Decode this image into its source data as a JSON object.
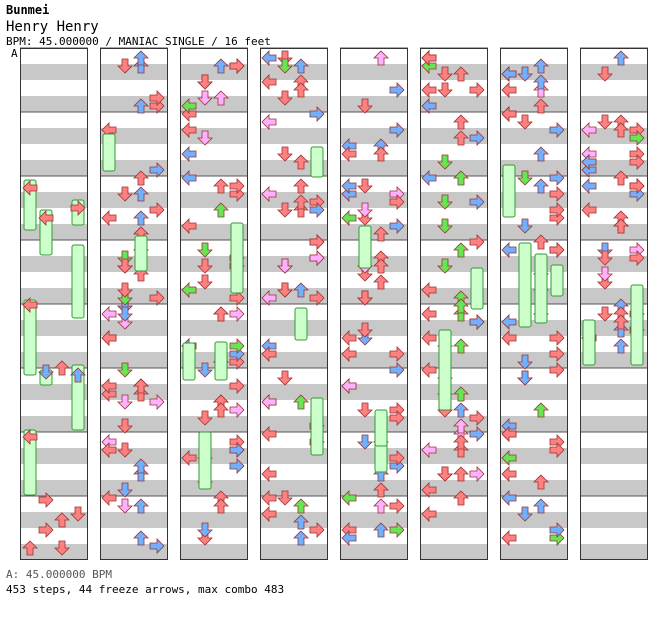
{
  "header": {
    "artist": "Bunmei",
    "title": "Henry Henry",
    "info": "BPM: 45.000000 / MANIAC SINGLE / 16 feet",
    "marker": "A"
  },
  "footer": {
    "bpm_line": "A: 45.000000 BPM",
    "stats": "453 steps, 44 freeze arrows, max combo 483"
  },
  "colors": {
    "left": "#ff8080",
    "down": "#ff8080",
    "up": "#ff8080",
    "right": "#ff8080",
    "quarter_outline": "#b33333",
    "eighth_fill": "#70b0ff",
    "sixteenth_fill": "#ffb0ff",
    "triplet_fill": "#66e655",
    "freeze_fill": "#ccffcc",
    "stripe": "#c8c8c8"
  }
}
